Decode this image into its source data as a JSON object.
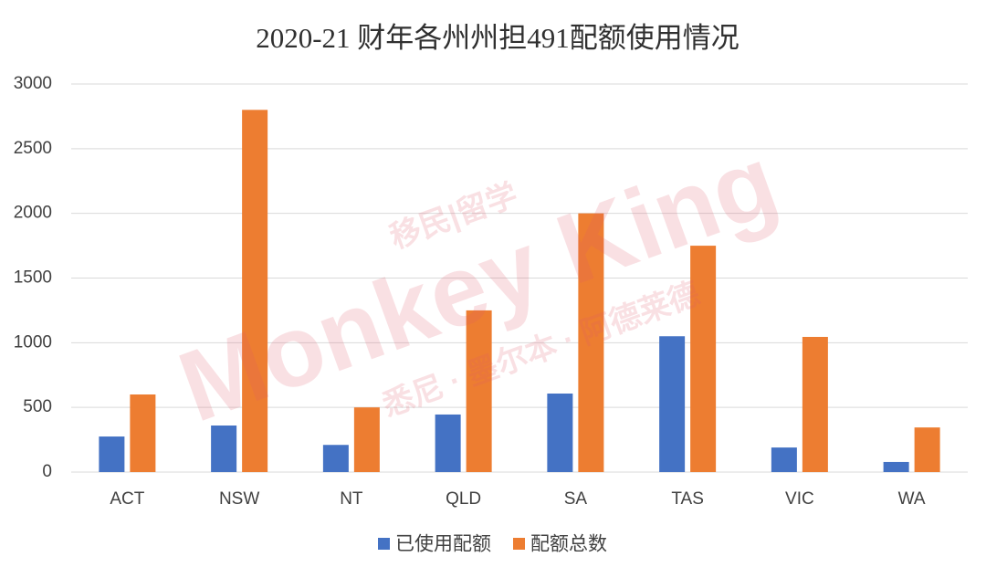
{
  "chart_data": {
    "type": "bar",
    "title": "2020-21 财年各州州担491配额使用情况",
    "categories": [
      "ACT",
      "NSW",
      "NT",
      "QLD",
      "SA",
      "TAS",
      "VIC",
      "WA"
    ],
    "series": [
      {
        "name": "已使用配额",
        "color": "#4472c4",
        "values": [
          275,
          360,
          210,
          445,
          607,
          1050,
          190,
          78
        ]
      },
      {
        "name": "配额总数",
        "color": "#ed7d31",
        "values": [
          600,
          2800,
          500,
          1250,
          2000,
          1750,
          1045,
          345
        ]
      }
    ],
    "ylim": [
      0,
      3000
    ],
    "yticks": [
      0,
      500,
      1000,
      1500,
      2000,
      2500,
      3000
    ],
    "grid": true,
    "legend": "bottom",
    "watermark": [
      "移民|留学",
      "Monkey King",
      "悉尼 · 墨尔本 · 阿德莱德"
    ]
  }
}
